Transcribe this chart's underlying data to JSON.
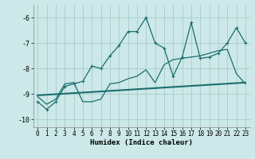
{
  "xlabel": "Humidex (Indice chaleur)",
  "bg_color": "#cce8e8",
  "grid_color": "#aacccc",
  "line_color": "#1a6e6e",
  "xlim": [
    -0.5,
    23.5
  ],
  "ylim": [
    -10.3,
    -5.5
  ],
  "xticks": [
    0,
    1,
    2,
    3,
    4,
    5,
    6,
    7,
    8,
    9,
    10,
    11,
    12,
    13,
    14,
    15,
    16,
    17,
    18,
    19,
    20,
    21,
    22,
    23
  ],
  "yticks": [
    -10,
    -9,
    -8,
    -7,
    -6
  ],
  "series1_x": [
    0,
    1,
    2,
    3,
    4,
    5,
    6,
    7,
    8,
    9,
    10,
    11,
    12,
    13,
    14,
    15,
    16,
    17,
    18,
    19,
    20,
    21,
    22,
    23
  ],
  "series1_y": [
    -9.3,
    -9.6,
    -9.3,
    -8.7,
    -8.6,
    -8.5,
    -7.9,
    -8.0,
    -7.5,
    -7.1,
    -6.55,
    -6.55,
    -6.0,
    -7.0,
    -7.2,
    -8.3,
    -7.55,
    -6.2,
    -7.6,
    -7.55,
    -7.4,
    -7.0,
    -6.4,
    -7.0
  ],
  "series2_x": [
    0,
    1,
    2,
    3,
    4,
    5,
    6,
    7,
    8,
    9,
    10,
    11,
    12,
    13,
    14,
    15,
    16,
    17,
    18,
    19,
    20,
    21,
    22,
    23
  ],
  "series2_y": [
    -9.1,
    -9.4,
    -9.2,
    -8.6,
    -8.55,
    -9.3,
    -9.3,
    -9.2,
    -8.6,
    -8.55,
    -8.4,
    -8.3,
    -8.05,
    -8.55,
    -7.85,
    -7.65,
    -7.6,
    -7.55,
    -7.5,
    -7.4,
    -7.3,
    -7.25,
    -8.2,
    -8.6
  ],
  "series3_x": [
    0,
    23
  ],
  "series3_y": [
    -9.05,
    -8.55
  ]
}
